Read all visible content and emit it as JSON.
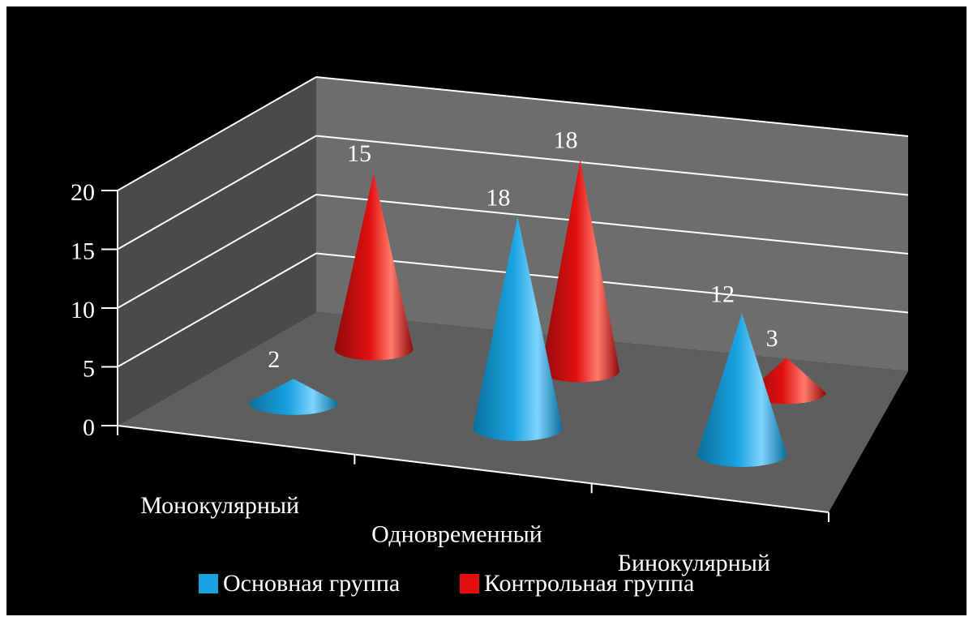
{
  "chart_data": {
    "type": "bar",
    "shape": "cone-3d",
    "categories": [
      "Монокулярный",
      "Одновременный",
      "Бинокулярный"
    ],
    "series": [
      {
        "name": "Основная группа",
        "values": [
          2,
          18,
          12
        ],
        "color": "#1aa3e0"
      },
      {
        "name": "Контрольная группа",
        "values": [
          15,
          18,
          3
        ],
        "color": "#e01010"
      }
    ],
    "ylim": [
      0,
      20
    ],
    "yticks": [
      0,
      5,
      10,
      15,
      20
    ],
    "grid": true,
    "legend": "bottom"
  },
  "colors": {
    "background": "#000000",
    "back_wall": "#6d6d6d",
    "side_wall": "#4a4a4a",
    "floor": "#5e5e5e",
    "gridline": "#ffffff",
    "text": "#ffffff"
  }
}
